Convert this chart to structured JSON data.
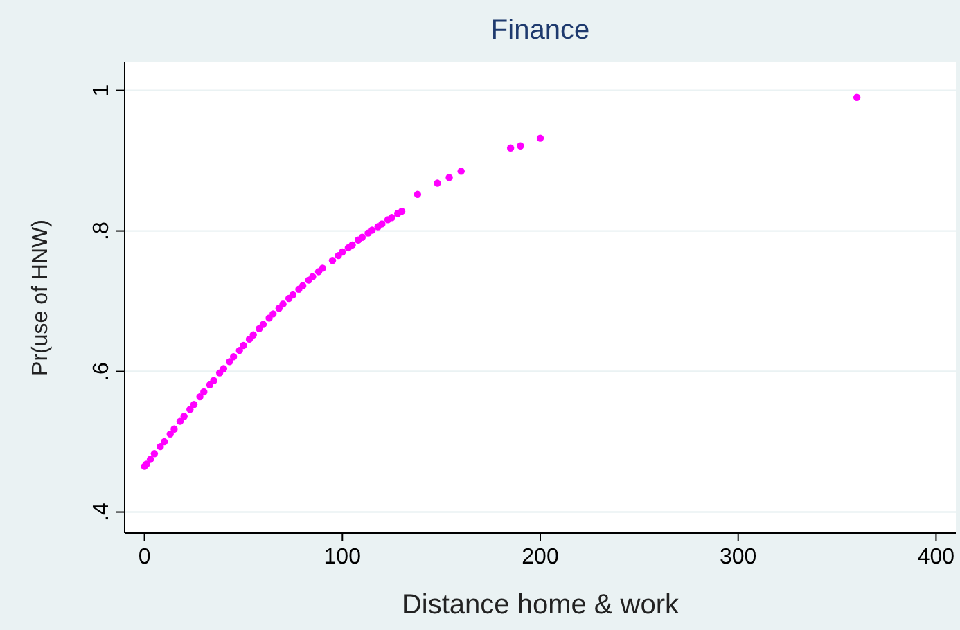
{
  "chart_data": {
    "type": "scatter",
    "title": "Finance",
    "xlabel": "Distance home & work",
    "ylabel": "Pr(use of HNW)",
    "xlim": [
      -10,
      410
    ],
    "ylim": [
      0.37,
      1.04
    ],
    "xticks": [
      0,
      100,
      200,
      300,
      400
    ],
    "yticks": [
      {
        "value": 0.4,
        "label": ".4"
      },
      {
        "value": 0.6,
        "label": ".6"
      },
      {
        "value": 0.8,
        "label": ".8"
      },
      {
        "value": 1,
        "label": "1"
      }
    ],
    "grid": "y",
    "marker": "circle",
    "series": [
      {
        "color": "#ff00ff",
        "x": [
          0,
          1,
          3,
          5,
          8,
          10,
          13,
          15,
          18,
          20,
          23,
          25,
          28,
          30,
          33,
          35,
          38,
          40,
          43,
          45,
          48,
          50,
          53,
          55,
          58,
          60,
          63,
          65,
          68,
          70,
          73,
          75,
          78,
          80,
          83,
          85,
          88,
          90,
          95,
          98,
          100,
          103,
          105,
          108,
          110,
          113,
          115,
          118,
          120,
          123,
          125,
          128,
          130,
          138,
          148,
          154,
          160,
          185,
          190,
          200,
          360
        ],
        "values": [
          0.465,
          0.468,
          0.475,
          0.483,
          0.493,
          0.5,
          0.511,
          0.518,
          0.529,
          0.536,
          0.546,
          0.553,
          0.564,
          0.571,
          0.581,
          0.587,
          0.598,
          0.604,
          0.614,
          0.621,
          0.63,
          0.637,
          0.646,
          0.652,
          0.661,
          0.667,
          0.676,
          0.682,
          0.69,
          0.696,
          0.704,
          0.709,
          0.717,
          0.722,
          0.73,
          0.735,
          0.742,
          0.747,
          0.758,
          0.765,
          0.77,
          0.776,
          0.78,
          0.787,
          0.791,
          0.797,
          0.801,
          0.806,
          0.81,
          0.816,
          0.819,
          0.825,
          0.828,
          0.852,
          0.868,
          0.876,
          0.885,
          0.918,
          0.921,
          0.932,
          0.99
        ]
      }
    ]
  }
}
